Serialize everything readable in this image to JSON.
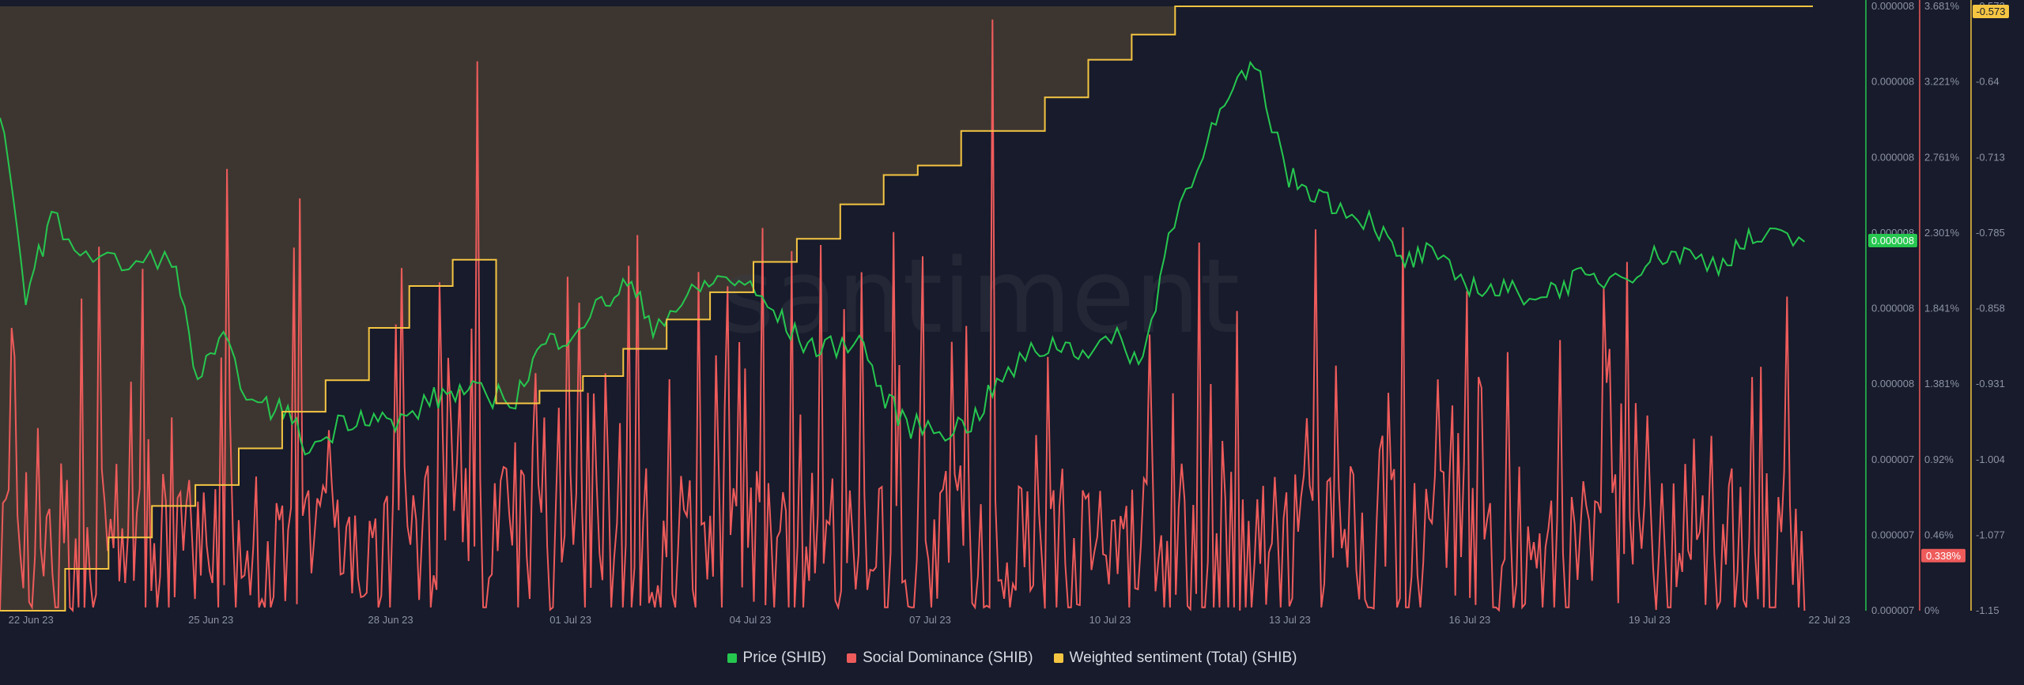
{
  "watermark": "santiment",
  "chart_data": {
    "type": "line",
    "title": "",
    "x_ticks": [
      "22 Jun 23",
      "25 Jun 23",
      "28 Jun 23",
      "01 Jul 23",
      "04 Jul 23",
      "07 Jul 23",
      "10 Jul 23",
      "13 Jul 23",
      "16 Jul 23",
      "19 Jul 23",
      "22 Jul 23"
    ],
    "axes": {
      "price": {
        "color": "#26c74f",
        "ticks": [
          "0.000008",
          "0.000008",
          "0.000008",
          "0.000008",
          "0.000008",
          "0.000008",
          "0.000007",
          "0.000007",
          "0.000007"
        ],
        "current_label": "0.000008"
      },
      "social_dominance": {
        "color": "#ee5b5b",
        "ticks": [
          "3.681%",
          "3.221%",
          "2.761%",
          "2.301%",
          "1.841%",
          "1.381%",
          "0.92%",
          "0.46%",
          "0%"
        ],
        "current_label": "0.338%",
        "range": [
          0,
          3.681
        ]
      },
      "weighted_sentiment": {
        "color": "#f5c542",
        "ticks": [
          "-0.573",
          "-0.64",
          "-0.713",
          "-0.785",
          "-0.858",
          "-0.931",
          "-1.004",
          "-1.077",
          "-1.15"
        ],
        "current_label": "-0.573",
        "range": [
          -1.15,
          -0.573
        ]
      }
    },
    "series": [
      {
        "name": "Price (SHIB)",
        "color": "#26c74f",
        "axis": "price",
        "points": [
          [
            0,
            1.56
          ],
          [
            0.3,
            1.0
          ],
          [
            0.6,
            1.23
          ],
          [
            1.0,
            1.12
          ],
          [
            1.5,
            1.08
          ],
          [
            2.0,
            1.12
          ],
          [
            2.3,
            0.73
          ],
          [
            2.6,
            0.84
          ],
          [
            3.0,
            0.63
          ],
          [
            3.3,
            0.64
          ],
          [
            3.6,
            0.5
          ],
          [
            4.0,
            0.6
          ],
          [
            4.3,
            0.62
          ],
          [
            4.6,
            0.58
          ],
          [
            5.0,
            0.66
          ],
          [
            5.3,
            0.69
          ],
          [
            5.6,
            0.68
          ],
          [
            6.0,
            0.67
          ],
          [
            6.3,
            0.83
          ],
          [
            6.6,
            0.87
          ],
          [
            7.0,
            0.96
          ],
          [
            7.3,
            1.03
          ],
          [
            7.6,
            0.9
          ],
          [
            8.0,
            0.98
          ],
          [
            8.3,
            1.04
          ],
          [
            8.6,
            1.04
          ],
          [
            9.0,
            0.94
          ],
          [
            9.3,
            0.85
          ],
          [
            9.6,
            0.82
          ],
          [
            10.0,
            0.86
          ],
          [
            10.3,
            0.66
          ],
          [
            10.6,
            0.58
          ],
          [
            11.0,
            0.57
          ],
          [
            11.3,
            0.59
          ],
          [
            11.6,
            0.71
          ],
          [
            12.0,
            0.81
          ],
          [
            12.3,
            0.84
          ],
          [
            12.6,
            0.82
          ],
          [
            13.0,
            0.85
          ],
          [
            13.3,
            0.78
          ],
          [
            13.6,
            1.18
          ],
          [
            14.0,
            1.46
          ],
          [
            14.3,
            1.6
          ],
          [
            14.6,
            1.72
          ],
          [
            15.0,
            1.36
          ],
          [
            15.3,
            1.32
          ],
          [
            15.6,
            1.27
          ],
          [
            16.0,
            1.22
          ],
          [
            16.3,
            1.09
          ],
          [
            16.6,
            1.12
          ],
          [
            17.0,
            1.04
          ],
          [
            17.3,
            1.01
          ],
          [
            17.6,
            1.0
          ],
          [
            18.0,
            1.0
          ],
          [
            18.3,
            1.04
          ],
          [
            18.6,
            1.04
          ],
          [
            19.0,
            1.07
          ],
          [
            19.3,
            1.12
          ],
          [
            19.6,
            1.12
          ],
          [
            20.0,
            1.09
          ],
          [
            20.3,
            1.16
          ],
          [
            20.6,
            1.17
          ],
          [
            21.0,
            1.16
          ]
        ]
      },
      {
        "name": "Social Dominance (SHIB)",
        "color": "#ee5b5b",
        "axis": "social_dominance",
        "peak": 3.6,
        "last": 0.338
      },
      {
        "name": "Weighted sentiment (Total) (SHIB)",
        "color": "#f5c542",
        "axis": "weighted_sentiment",
        "steps": [
          [
            0,
            -1.15
          ],
          [
            1.05,
            -1.11
          ],
          [
            1.75,
            -1.08
          ],
          [
            2.45,
            -1.05
          ],
          [
            3.15,
            -1.03
          ],
          [
            3.85,
            -0.995
          ],
          [
            4.55,
            -0.96
          ],
          [
            5.25,
            -0.93
          ],
          [
            5.95,
            -0.88
          ],
          [
            6.6,
            -0.84
          ],
          [
            7.3,
            -0.815
          ],
          [
            8.0,
            -0.952
          ],
          [
            8.7,
            -0.94
          ],
          [
            9.4,
            -0.926
          ],
          [
            10.05,
            -0.9
          ],
          [
            10.75,
            -0.872
          ],
          [
            11.45,
            -0.846
          ],
          [
            12.15,
            -0.817
          ],
          [
            12.85,
            -0.795
          ],
          [
            13.55,
            -0.762
          ],
          [
            14.25,
            -0.734
          ],
          [
            14.8,
            -0.725
          ],
          [
            15.5,
            -0.692
          ],
          [
            16.85,
            -0.66
          ],
          [
            17.55,
            -0.624
          ],
          [
            18.25,
            -0.6
          ],
          [
            18.95,
            -0.573
          ],
          [
            20.0,
            -0.573
          ]
        ]
      }
    ],
    "legend_position": "bottom",
    "grid": false
  }
}
